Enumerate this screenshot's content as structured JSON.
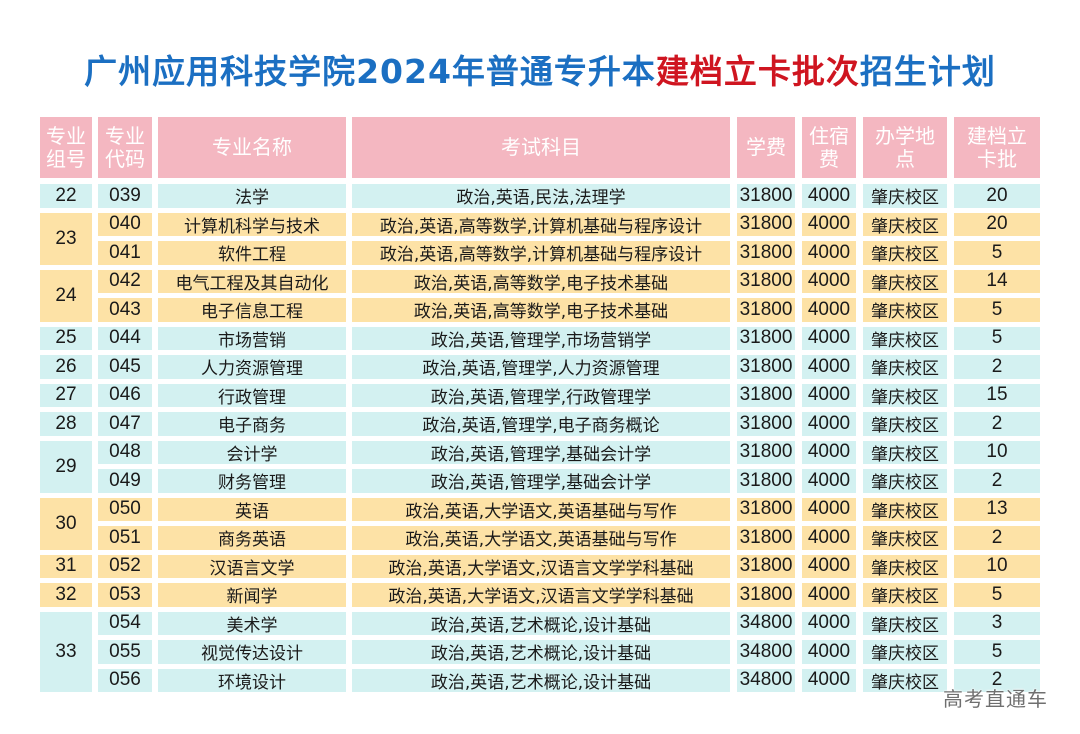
{
  "title": {
    "part1": "广州应用科技学院2024年普通专升本",
    "part2": "建档立卡批次",
    "part3": "招生计划",
    "color_blue": "#1b6fc2",
    "color_red": "#cf1520"
  },
  "table": {
    "headers": [
      "专业\n组号",
      "专业\n代码",
      "专业名称",
      "考试科目",
      "学费",
      "住宿\n费",
      "办学地\n点",
      "建档立\n卡批"
    ],
    "groups": [
      {
        "group": "22",
        "color": "cyan",
        "rows": [
          {
            "code": "039",
            "name": "法学",
            "subjects": "政治,英语,民法,法理学",
            "tuition": "31800",
            "dorm": "4000",
            "location": "肇庆校区",
            "quota": "20"
          }
        ]
      },
      {
        "group": "23",
        "color": "yellow",
        "rows": [
          {
            "code": "040",
            "name": "计算机科学与技术",
            "subjects": "政治,英语,高等数学,计算机基础与程序设计",
            "tuition": "31800",
            "dorm": "4000",
            "location": "肇庆校区",
            "quota": "20"
          },
          {
            "code": "041",
            "name": "软件工程",
            "subjects": "政治,英语,高等数学,计算机基础与程序设计",
            "tuition": "31800",
            "dorm": "4000",
            "location": "肇庆校区",
            "quota": "5"
          }
        ]
      },
      {
        "group": "24",
        "color": "yellow",
        "rows": [
          {
            "code": "042",
            "name": "电气工程及其自动化",
            "subjects": "政治,英语,高等数学,电子技术基础",
            "tuition": "31800",
            "dorm": "4000",
            "location": "肇庆校区",
            "quota": "14"
          },
          {
            "code": "043",
            "name": "电子信息工程",
            "subjects": "政治,英语,高等数学,电子技术基础",
            "tuition": "31800",
            "dorm": "4000",
            "location": "肇庆校区",
            "quota": "5"
          }
        ]
      },
      {
        "group": "25",
        "color": "cyan",
        "rows": [
          {
            "code": "044",
            "name": "市场营销",
            "subjects": "政治,英语,管理学,市场营销学",
            "tuition": "31800",
            "dorm": "4000",
            "location": "肇庆校区",
            "quota": "5"
          }
        ]
      },
      {
        "group": "26",
        "color": "cyan",
        "rows": [
          {
            "code": "045",
            "name": "人力资源管理",
            "subjects": "政治,英语,管理学,人力资源管理",
            "tuition": "31800",
            "dorm": "4000",
            "location": "肇庆校区",
            "quota": "2"
          }
        ]
      },
      {
        "group": "27",
        "color": "cyan",
        "rows": [
          {
            "code": "046",
            "name": "行政管理",
            "subjects": "政治,英语,管理学,行政管理学",
            "tuition": "31800",
            "dorm": "4000",
            "location": "肇庆校区",
            "quota": "15"
          }
        ]
      },
      {
        "group": "28",
        "color": "cyan",
        "rows": [
          {
            "code": "047",
            "name": "电子商务",
            "subjects": "政治,英语,管理学,电子商务概论",
            "tuition": "31800",
            "dorm": "4000",
            "location": "肇庆校区",
            "quota": "2"
          }
        ]
      },
      {
        "group": "29",
        "color": "cyan",
        "rows": [
          {
            "code": "048",
            "name": "会计学",
            "subjects": "政治,英语,管理学,基础会计学",
            "tuition": "31800",
            "dorm": "4000",
            "location": "肇庆校区",
            "quota": "10"
          },
          {
            "code": "049",
            "name": "财务管理",
            "subjects": "政治,英语,管理学,基础会计学",
            "tuition": "31800",
            "dorm": "4000",
            "location": "肇庆校区",
            "quota": "2"
          }
        ]
      },
      {
        "group": "30",
        "color": "yellow",
        "rows": [
          {
            "code": "050",
            "name": "英语",
            "subjects": "政治,英语,大学语文,英语基础与写作",
            "tuition": "31800",
            "dorm": "4000",
            "location": "肇庆校区",
            "quota": "13"
          },
          {
            "code": "051",
            "name": "商务英语",
            "subjects": "政治,英语,大学语文,英语基础与写作",
            "tuition": "31800",
            "dorm": "4000",
            "location": "肇庆校区",
            "quota": "2"
          }
        ]
      },
      {
        "group": "31",
        "color": "yellow",
        "rows": [
          {
            "code": "052",
            "name": "汉语言文学",
            "subjects": "政治,英语,大学语文,汉语言文学学科基础",
            "tuition": "31800",
            "dorm": "4000",
            "location": "肇庆校区",
            "quota": "10"
          }
        ]
      },
      {
        "group": "32",
        "color": "yellow",
        "rows": [
          {
            "code": "053",
            "name": "新闻学",
            "subjects": "政治,英语,大学语文,汉语言文学学科基础",
            "tuition": "31800",
            "dorm": "4000",
            "location": "肇庆校区",
            "quota": "5"
          }
        ]
      },
      {
        "group": "33",
        "color": "cyan",
        "rows": [
          {
            "code": "054",
            "name": "美术学",
            "subjects": "政治,英语,艺术概论,设计基础",
            "tuition": "34800",
            "dorm": "4000",
            "location": "肇庆校区",
            "quota": "3"
          },
          {
            "code": "055",
            "name": "视觉传达设计",
            "subjects": "政治,英语,艺术概论,设计基础",
            "tuition": "34800",
            "dorm": "4000",
            "location": "肇庆校区",
            "quota": "5"
          },
          {
            "code": "056",
            "name": "环境设计",
            "subjects": "政治,英语,艺术概论,设计基础",
            "tuition": "34800",
            "dorm": "4000",
            "location": "肇庆校区",
            "quota": "2"
          }
        ]
      }
    ]
  },
  "colors": {
    "header_pink": "#f4b7c1",
    "row_cyan": "#d3f1f1",
    "row_yellow": "#fde2a6"
  },
  "watermark": "高考直通车"
}
